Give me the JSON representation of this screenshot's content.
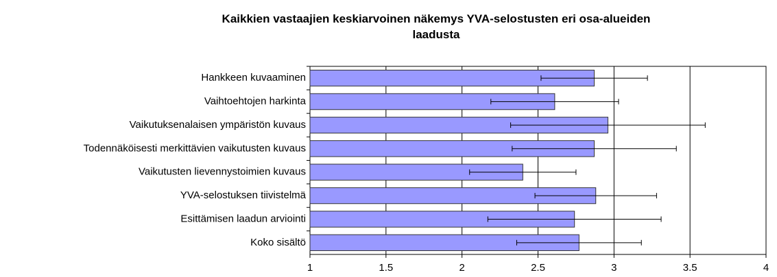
{
  "chart_data": {
    "type": "bar",
    "orientation": "horizontal",
    "title": "Kaikkien vastaajien keskiarvoinen näkemys YVA-selostusten eri osa-alueiden laadusta",
    "categories": [
      "Hankkeen kuvaaminen",
      "Vaihtoehtojen harkinta",
      "Vaikutuksenalaisen ympäristön kuvaus",
      "Todennäköisesti merkittävien vaikutusten kuvaus",
      "Vaikutusten lievennystoimien kuvaus",
      "YVA-selostuksen tiivistelmä",
      "Esittämisen laadun arviointi",
      "Koko sisältö"
    ],
    "values": [
      2.87,
      2.61,
      2.96,
      2.87,
      2.4,
      2.88,
      2.74,
      2.77
    ],
    "errors": [
      0.35,
      0.42,
      0.64,
      0.54,
      0.35,
      0.4,
      0.57,
      0.41
    ],
    "color": "#9999ff",
    "xlim": [
      1,
      4
    ],
    "xticks": [
      1,
      1.5,
      2,
      2.5,
      3,
      3.5,
      4
    ],
    "grid": true
  }
}
